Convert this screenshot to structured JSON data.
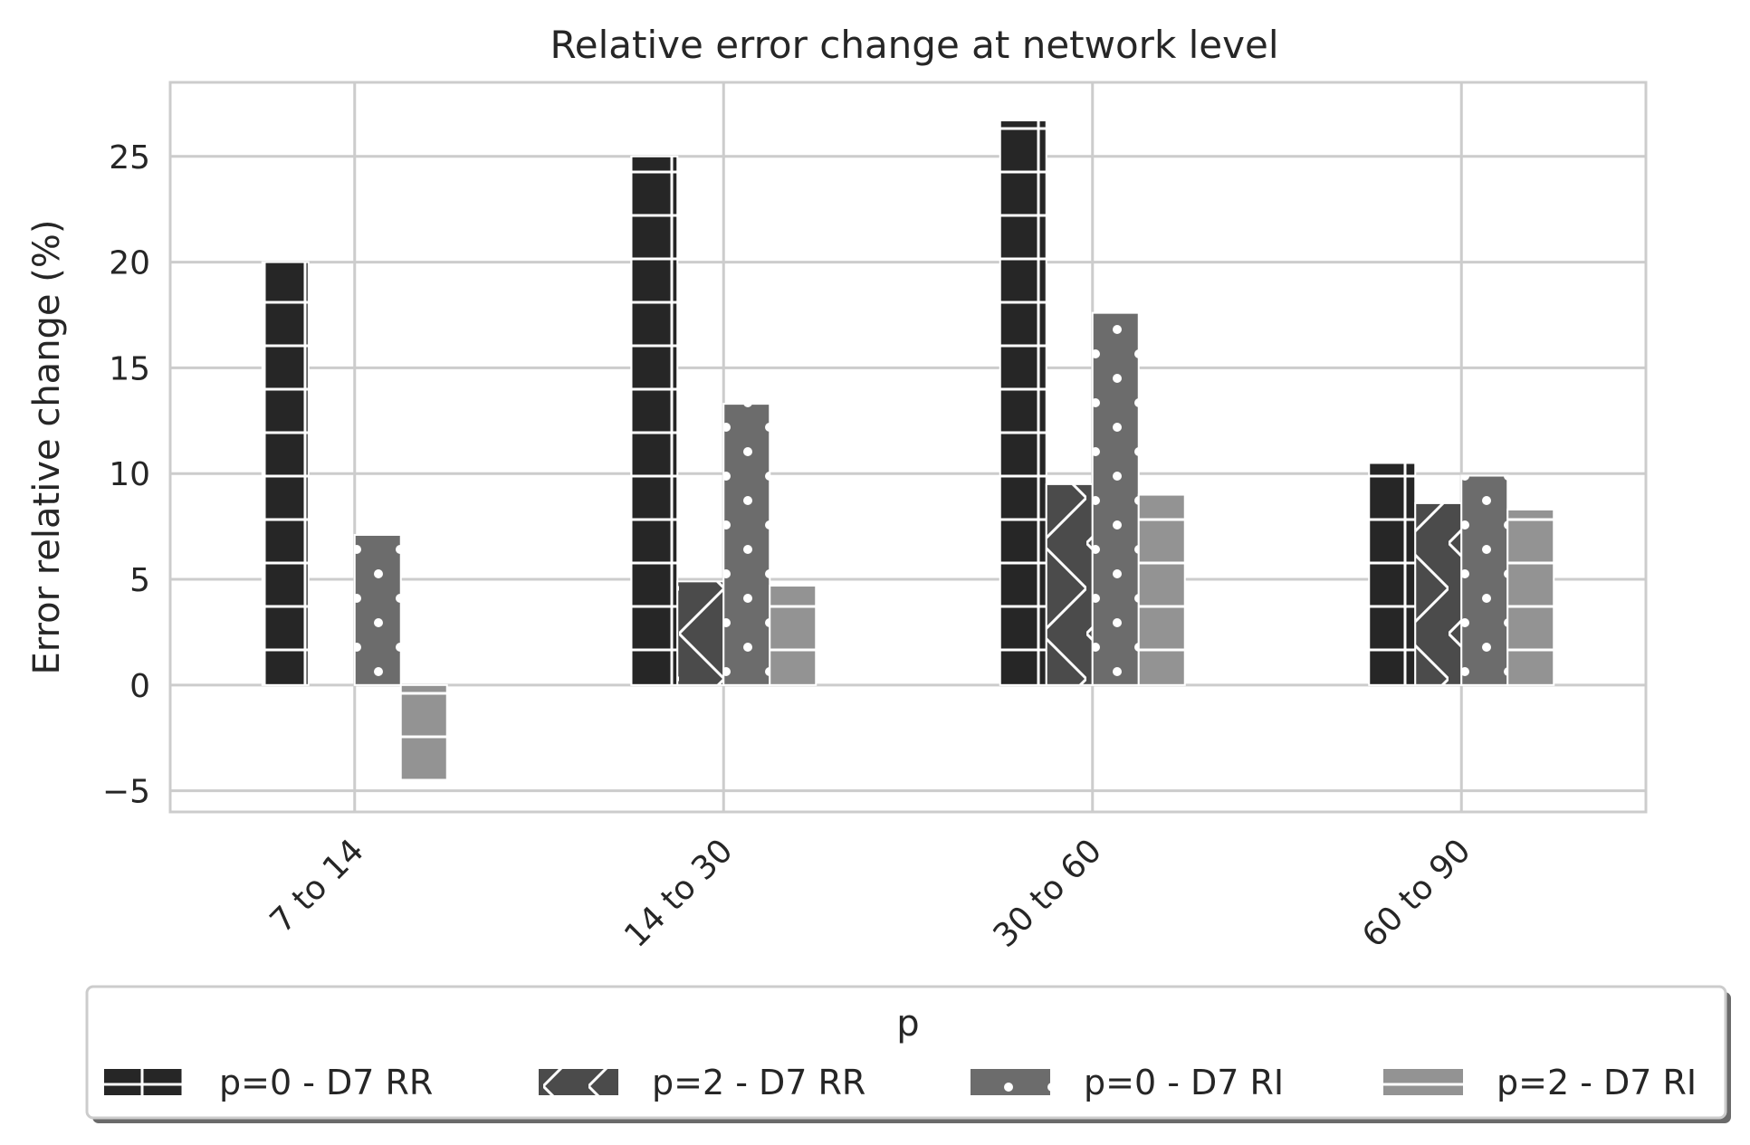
{
  "chart_data": {
    "type": "bar",
    "title": "Relative error change at network level",
    "xlabel": "",
    "ylabel": "Error relative change (%)",
    "categories": [
      "7 to 14",
      "14 to 30",
      "30 to 60",
      "60 to 90"
    ],
    "ylim": [
      -6,
      28.5
    ],
    "yticks": [
      -5,
      0,
      5,
      10,
      15,
      20,
      25
    ],
    "ytick_labels": [
      "−5",
      "0",
      "5",
      "10",
      "15",
      "20",
      "25"
    ],
    "grid": true,
    "legend": {
      "title": "p",
      "placement": "bottom"
    },
    "series": [
      {
        "name": "p=0 - D7 RR",
        "values": [
          20.0,
          25.0,
          26.7,
          10.5
        ],
        "color": "#262626",
        "hatch": "grid"
      },
      {
        "name": "p=2 - D7 RR",
        "values": [
          0.0,
          4.9,
          9.5,
          8.6
        ],
        "color": "#4b4b4b",
        "hatch": "zigzag"
      },
      {
        "name": "p=0 - D7 RI",
        "values": [
          7.1,
          13.3,
          17.6,
          9.9
        ],
        "color": "#6c6c6c",
        "hatch": "dots"
      },
      {
        "name": "p=2 - D7 RI",
        "values": [
          -4.5,
          4.7,
          9.0,
          8.3
        ],
        "color": "#939393",
        "hatch": "lines"
      }
    ]
  }
}
